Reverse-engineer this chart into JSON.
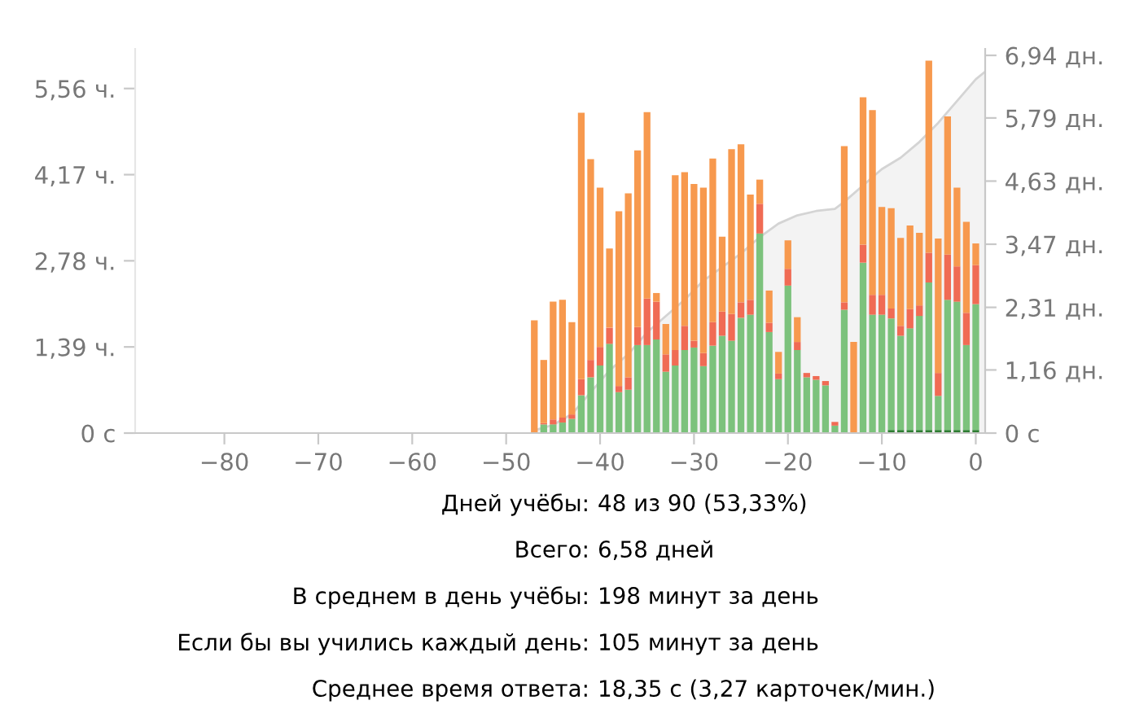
{
  "chart_data": {
    "type": "bar",
    "stacked": true,
    "x": [
      -47,
      -46,
      -45,
      -44,
      -43,
      -42,
      -41,
      -40,
      -39,
      -38,
      -37,
      -36,
      -35,
      -34,
      -33,
      -32,
      -31,
      -30,
      -29,
      -28,
      -27,
      -26,
      -25,
      -24,
      -23,
      -22,
      -21,
      -20,
      -19,
      -18,
      -17,
      -16,
      -15,
      -14,
      -13,
      -12,
      -11,
      -10,
      -9,
      -8,
      -7,
      -6,
      -5,
      -4,
      -3,
      -2,
      -1,
      0
    ],
    "series": [
      {
        "color": "#2e7d32",
        "values": [
          0,
          0,
          0,
          0,
          0,
          0,
          0,
          0,
          0,
          0,
          0,
          0,
          0,
          0,
          0,
          0,
          0,
          0,
          0,
          0,
          0,
          0,
          0,
          0,
          0,
          0,
          0,
          0,
          0,
          0,
          0,
          0,
          0,
          0,
          0,
          0,
          0,
          0,
          0.05,
          0.05,
          0.05,
          0.05,
          0.05,
          0.05,
          0.05,
          0.05,
          0.05,
          0.05
        ]
      },
      {
        "color": "#7cc27c",
        "values": [
          0,
          0.14,
          0.14,
          0.17,
          0.23,
          0.61,
          0.9,
          1.09,
          1.44,
          0.66,
          0.7,
          1.42,
          1.42,
          1.51,
          0.99,
          1.09,
          1.34,
          1.38,
          1.08,
          1.41,
          1.57,
          1.49,
          1.86,
          1.91,
          3.22,
          1.63,
          0.87,
          2.38,
          1.34,
          0.9,
          0.86,
          0.77,
          0.12,
          1.99,
          0,
          2.75,
          1.91,
          1.91,
          1.8,
          1.52,
          1.64,
          1.84,
          2.38,
          0.55,
          2.1,
          2.07,
          1.37,
          2.03
        ]
      },
      {
        "color": "#f06b54",
        "values": [
          0,
          0.02,
          0.08,
          0.08,
          0.07,
          0.26,
          0.28,
          0.3,
          0.26,
          0.1,
          0.2,
          0.29,
          0.75,
          0.61,
          0.28,
          0.25,
          0.39,
          0.11,
          0.21,
          0.38,
          0.39,
          0.43,
          0.25,
          0.24,
          0.48,
          0.15,
          0.09,
          0.27,
          0.13,
          0.07,
          0.06,
          0.07,
          0.06,
          0.12,
          0,
          0.29,
          0.32,
          0.32,
          0.16,
          0.16,
          0.31,
          0.17,
          0.48,
          0.37,
          0.73,
          0.57,
          0.52,
          0.63
        ]
      },
      {
        "color": "#f7994e",
        "values": [
          1.82,
          1.02,
          1.9,
          1.9,
          1.49,
          4.3,
          3.24,
          2.57,
          1.28,
          2.82,
          2.97,
          2.85,
          3.01,
          0.14,
          0.49,
          2.82,
          2.48,
          2.53,
          2.67,
          2.64,
          1.21,
          2.66,
          2.55,
          1.7,
          0.39,
          0.52,
          0.35,
          0.46,
          0.4,
          0,
          0,
          0,
          0,
          2.52,
          1.47,
          2.38,
          2.98,
          1.42,
          1.62,
          1.42,
          1.35,
          1.17,
          3.1,
          2.17,
          2.23,
          1.27,
          1.47,
          0.35
        ]
      },
      {
        "type": "area",
        "axis": "y2",
        "color": "#d4d4d4",
        "x": [
          -47,
          -45,
          -43,
          -41,
          -39,
          -37,
          -35,
          -33,
          -31,
          -29,
          -27,
          -25,
          -23,
          -21,
          -19,
          -17,
          -15,
          -14,
          -12,
          -10,
          -8,
          -6,
          -4,
          -2,
          0,
          1
        ],
        "values": [
          0.05,
          0.15,
          0.35,
          0.75,
          1.15,
          1.45,
          1.85,
          2.15,
          2.45,
          2.8,
          3.05,
          3.3,
          3.6,
          3.85,
          4.0,
          4.08,
          4.12,
          4.25,
          4.55,
          4.85,
          5.06,
          5.35,
          5.7,
          6.1,
          6.5,
          6.64
        ]
      }
    ],
    "xlim": [
      -89.5,
      1
    ],
    "xticks": [
      {
        "value": -80,
        "label": "−80"
      },
      {
        "value": -70,
        "label": "−70"
      },
      {
        "value": -60,
        "label": "−60"
      },
      {
        "value": -50,
        "label": "−50"
      },
      {
        "value": -40,
        "label": "−40"
      },
      {
        "value": -30,
        "label": "−30"
      },
      {
        "value": -20,
        "label": "−20"
      },
      {
        "value": -10,
        "label": "−10"
      },
      0
    ],
    "ylim": [
      0,
      6.2
    ],
    "yticks": [
      {
        "value": 0,
        "label": "0 с"
      },
      {
        "value": 1.39,
        "label": "1,39 ч."
      },
      {
        "value": 2.78,
        "label": "2,78 ч."
      },
      {
        "value": 4.17,
        "label": "4,17 ч."
      },
      {
        "value": 5.56,
        "label": "5,56 ч."
      }
    ],
    "y2lim": [
      0,
      7.06
    ],
    "y2ticks": [
      {
        "value": 0,
        "label": "0 с"
      },
      {
        "value": 1.16,
        "label": "1,16 дн."
      },
      {
        "value": 2.31,
        "label": "2,31 дн."
      },
      {
        "value": 3.47,
        "label": "3,47 дн."
      },
      {
        "value": 4.63,
        "label": "4,63 дн."
      },
      {
        "value": 5.79,
        "label": "5,79 дн."
      },
      {
        "value": 6.94,
        "label": "6,94 дн."
      }
    ],
    "grid": false,
    "legend": false,
    "annotations": [
      "Дней учёбы: 48 из 90 (53,33%)",
      "Всего: 6,58 дней",
      "В среднем в день учёбы: 198 минут за день",
      "Если бы вы учились каждый день: 105 минут за день",
      "Среднее время ответа: 18,35 с (3,27 карточек/мин.)"
    ]
  }
}
